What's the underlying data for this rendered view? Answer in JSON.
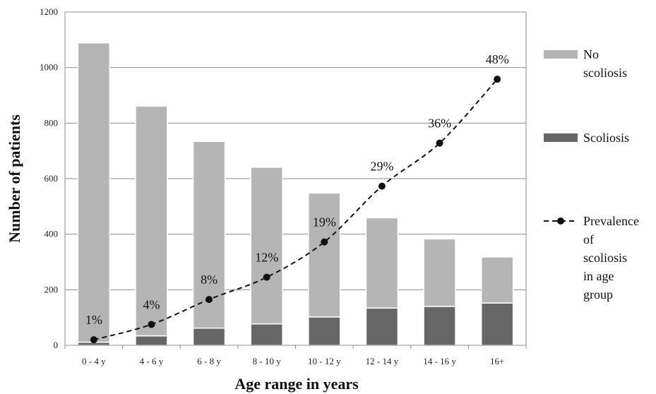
{
  "chart_data": {
    "type": "bar",
    "stacked": true,
    "categories": [
      "0 - 4 y",
      "4 - 6 y",
      "6 - 8 y",
      "8 - 10 y",
      "10 - 12 y",
      "12 - 14 y",
      "14 - 16 y",
      "16+"
    ],
    "series": [
      {
        "name": "Scoliosis",
        "type": "bar",
        "color": "#666666",
        "values": [
          11,
          34,
          62,
          77,
          102,
          134,
          140,
          152
        ]
      },
      {
        "name": "No scoliosis",
        "type": "bar",
        "color": "#b5b5b5",
        "values": [
          1078,
          827,
          672,
          564,
          446,
          325,
          243,
          166
        ]
      },
      {
        "name": "Prevalence of scoliosis in age group",
        "type": "line",
        "style": "dashed",
        "marker": "circle",
        "color": "#111111",
        "values": [
          20,
          75,
          165,
          245,
          372,
          573,
          728,
          958
        ],
        "labels": [
          "1%",
          "4%",
          "8%",
          "12%",
          "19%",
          "29%",
          "36%",
          "48%"
        ]
      }
    ],
    "xlabel": "Age range in years",
    "ylabel": "Number of patients",
    "ylim": [
      0,
      1200
    ],
    "yticks": [
      0,
      200,
      400,
      600,
      800,
      1000,
      1200
    ],
    "grid": true,
    "legend_position": "right"
  }
}
